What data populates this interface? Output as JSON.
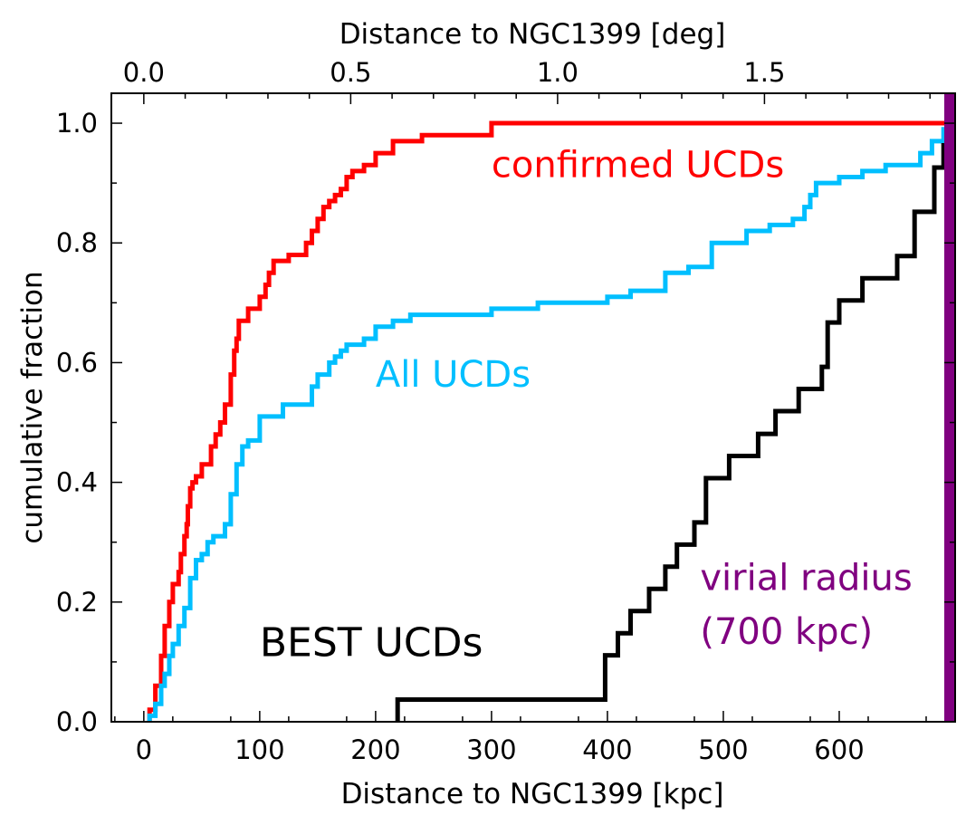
{
  "chart_data": {
    "type": "line",
    "title": "",
    "xlabel": "Distance to NGC1399 [kpc]",
    "ylabel": "cumulative fraction",
    "top_xlabel": "Distance to NGC1399 [deg]",
    "xlim": [
      -28,
      700
    ],
    "ylim": [
      0,
      1.05
    ],
    "xticks": [
      0,
      100,
      200,
      300,
      400,
      500,
      600
    ],
    "xtick_labels": [
      "0",
      "100",
      "200",
      "300",
      "400",
      "500",
      "600"
    ],
    "yticks": [
      0.0,
      0.2,
      0.4,
      0.6,
      0.8,
      1.0
    ],
    "ytick_labels": [
      "0.0",
      "0.2",
      "0.4",
      "0.6",
      "0.8",
      "1.0"
    ],
    "top_xticks_deg": [
      0.0,
      0.5,
      1.0,
      1.5
    ],
    "top_xtick_labels": [
      "0.0",
      "0.5",
      "1.0",
      "1.5"
    ],
    "top_axis_kpc_per_deg": 357,
    "grid": false,
    "series": [
      {
        "name": "confirmed UCDs",
        "color": "#ff0000",
        "x": [
          5,
          10,
          15,
          18,
          22,
          25,
          30,
          32,
          35,
          37,
          38,
          40,
          42,
          45,
          50,
          58,
          62,
          66,
          70,
          75,
          78,
          80,
          82,
          85,
          90,
          100,
          105,
          108,
          112,
          115,
          120,
          125,
          140,
          145,
          150,
          155,
          160,
          165,
          170,
          175,
          180,
          185,
          190,
          200,
          215,
          230,
          240,
          250,
          260,
          280,
          300,
          330,
          340,
          700
        ],
        "y": [
          0.02,
          0.06,
          0.11,
          0.16,
          0.2,
          0.23,
          0.25,
          0.28,
          0.31,
          0.33,
          0.36,
          0.39,
          0.4,
          0.41,
          0.43,
          0.46,
          0.48,
          0.5,
          0.53,
          0.58,
          0.62,
          0.64,
          0.67,
          0.67,
          0.69,
          0.71,
          0.73,
          0.75,
          0.77,
          0.77,
          0.77,
          0.78,
          0.8,
          0.82,
          0.84,
          0.86,
          0.87,
          0.88,
          0.89,
          0.91,
          0.92,
          0.92,
          0.93,
          0.95,
          0.97,
          0.97,
          0.98,
          0.98,
          0.98,
          0.98,
          1.0,
          1.0,
          1.0,
          1.0
        ]
      },
      {
        "name": "All UCDs",
        "color": "#00bfff",
        "x": [
          5,
          10,
          15,
          18,
          22,
          25,
          30,
          35,
          40,
          45,
          50,
          55,
          60,
          70,
          75,
          80,
          85,
          90,
          100,
          120,
          135,
          145,
          150,
          160,
          165,
          170,
          175,
          180,
          185,
          190,
          200,
          215,
          220,
          230,
          300,
          340,
          400,
          420,
          450,
          470,
          490,
          520,
          540,
          560,
          570,
          575,
          580,
          600,
          620,
          640,
          650,
          670,
          680,
          690,
          700
        ],
        "y": [
          0.01,
          0.03,
          0.06,
          0.08,
          0.11,
          0.13,
          0.16,
          0.19,
          0.24,
          0.27,
          0.28,
          0.3,
          0.31,
          0.33,
          0.38,
          0.43,
          0.46,
          0.47,
          0.51,
          0.53,
          0.53,
          0.56,
          0.58,
          0.6,
          0.61,
          0.62,
          0.63,
          0.63,
          0.63,
          0.64,
          0.66,
          0.67,
          0.67,
          0.68,
          0.69,
          0.7,
          0.71,
          0.72,
          0.75,
          0.76,
          0.8,
          0.82,
          0.83,
          0.84,
          0.86,
          0.88,
          0.9,
          0.91,
          0.92,
          0.93,
          0.93,
          0.95,
          0.97,
          0.99,
          1.0
        ]
      },
      {
        "name": "BEST UCDs",
        "color": "#000000",
        "x": [
          219,
          398,
          409,
          420,
          436,
          450,
          460,
          475,
          485,
          505,
          530,
          545,
          565,
          585,
          590,
          600,
          620,
          650,
          665,
          682,
          690,
          700
        ],
        "y": [
          0.037,
          0.111,
          0.148,
          0.185,
          0.222,
          0.259,
          0.296,
          0.333,
          0.407,
          0.444,
          0.481,
          0.519,
          0.556,
          0.593,
          0.667,
          0.704,
          0.741,
          0.778,
          0.852,
          0.926,
          0.963,
          1.0
        ]
      }
    ],
    "vertical_line": {
      "name": "virial radius",
      "x": 700,
      "color": "#800080"
    },
    "annotations": [
      {
        "text": "confirmed UCDs",
        "x": 300,
        "y": 0.91,
        "color": "#ff0000"
      },
      {
        "text": "All UCDs",
        "x": 200,
        "y": 0.56,
        "color": "#00bfff"
      },
      {
        "text": "BEST UCDs",
        "x": 100,
        "y": 0.11,
        "color": "#000000"
      },
      {
        "text": "virial radius",
        "x": 480,
        "y": 0.22,
        "color": "#800080"
      },
      {
        "text": "(700 kpc)",
        "x": 480,
        "y": 0.13,
        "color": "#800080"
      }
    ]
  }
}
